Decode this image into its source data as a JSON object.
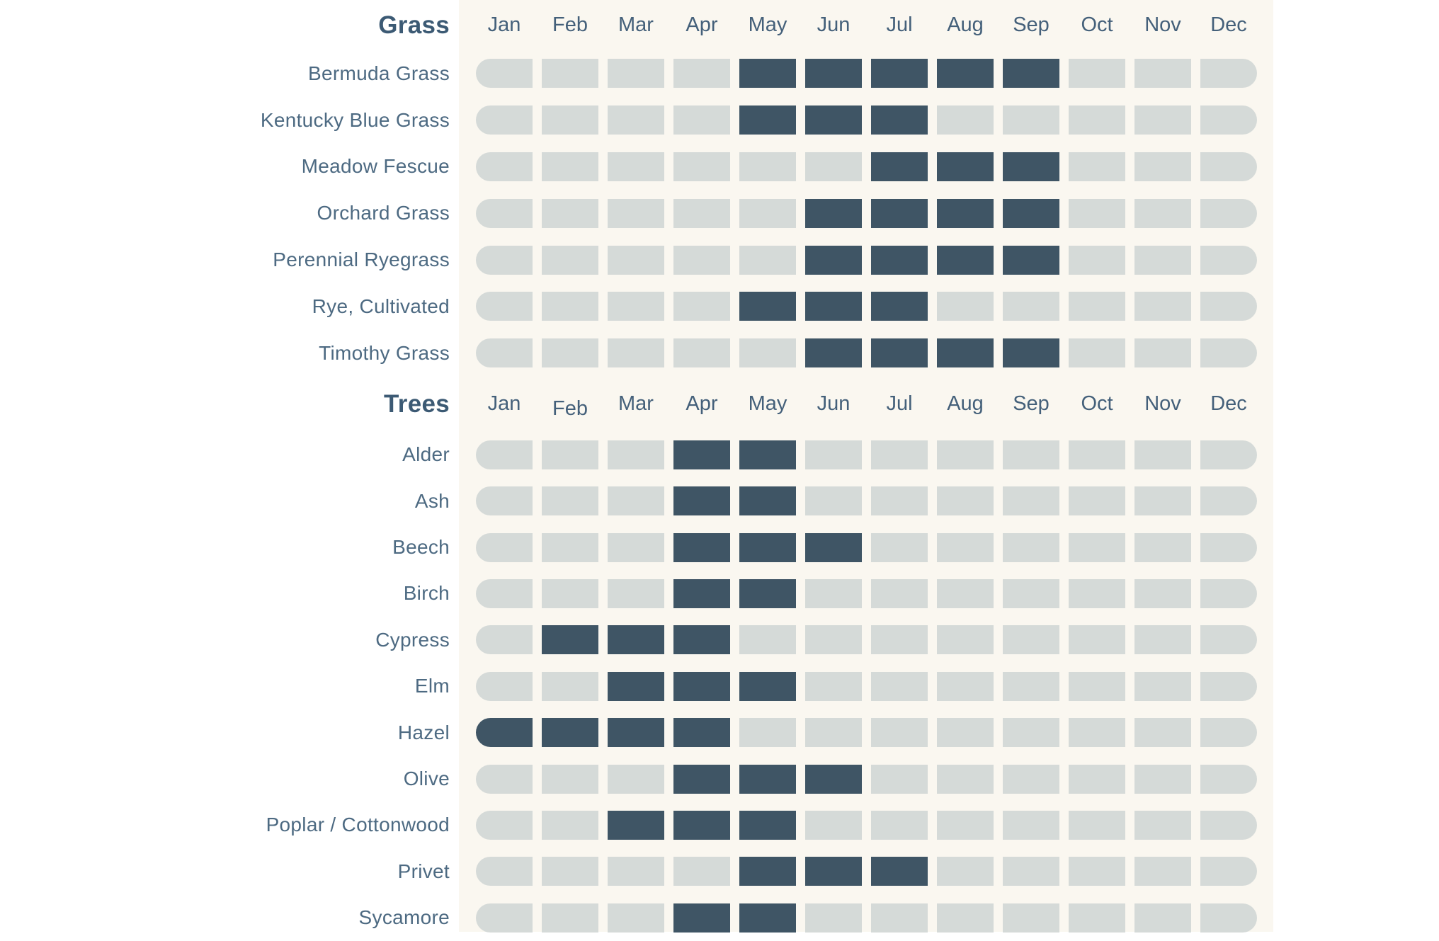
{
  "page": {
    "background": "#ffffff",
    "band_color": "#faf7f0"
  },
  "chart_data": {
    "type": "heatmap",
    "description": "Pollen season calendar: rows are plant species, columns are months, dark cells mark active pollen months",
    "months": [
      "Jan",
      "Feb",
      "Mar",
      "Apr",
      "May",
      "Jun",
      "Jul",
      "Aug",
      "Sep",
      "Oct",
      "Nov",
      "Dec"
    ],
    "cell_colors": {
      "active": "#3f5565",
      "inactive": "#d5dad8"
    },
    "text_colors": {
      "section_title": "#3c5a74",
      "row_label": "#4d6a82",
      "month_label": "#44607a"
    },
    "sections": [
      {
        "title": "Grass",
        "rows": [
          {
            "label": "Bermuda Grass",
            "active_months": [
              5,
              6,
              7,
              8,
              9
            ]
          },
          {
            "label": "Kentucky Blue Grass",
            "active_months": [
              5,
              6,
              7
            ]
          },
          {
            "label": "Meadow Fescue",
            "active_months": [
              7,
              8,
              9
            ]
          },
          {
            "label": "Orchard Grass",
            "active_months": [
              6,
              7,
              8,
              9
            ]
          },
          {
            "label": "Perennial Ryegrass",
            "active_months": [
              6,
              7,
              8,
              9
            ]
          },
          {
            "label": "Rye, Cultivated",
            "active_months": [
              5,
              6,
              7
            ]
          },
          {
            "label": "Timothy Grass",
            "active_months": [
              6,
              7,
              8,
              9
            ]
          }
        ]
      },
      {
        "title": "Trees",
        "rows": [
          {
            "label": "Alder",
            "active_months": [
              4,
              5
            ]
          },
          {
            "label": "Ash",
            "active_months": [
              4,
              5
            ]
          },
          {
            "label": "Beech",
            "active_months": [
              4,
              5,
              6
            ]
          },
          {
            "label": "Birch",
            "active_months": [
              4,
              5
            ]
          },
          {
            "label": "Cypress",
            "active_months": [
              2,
              3,
              4
            ]
          },
          {
            "label": "Elm",
            "active_months": [
              3,
              4,
              5
            ]
          },
          {
            "label": "Hazel",
            "active_months": [
              1,
              2,
              3,
              4
            ]
          },
          {
            "label": "Olive",
            "active_months": [
              4,
              5,
              6
            ]
          },
          {
            "label": "Poplar / Cottonwood",
            "active_months": [
              3,
              4,
              5
            ]
          },
          {
            "label": "Privet",
            "active_months": [
              5,
              6,
              7
            ]
          },
          {
            "label": "Sycamore",
            "active_months": [
              4,
              5
            ]
          }
        ]
      }
    ]
  }
}
